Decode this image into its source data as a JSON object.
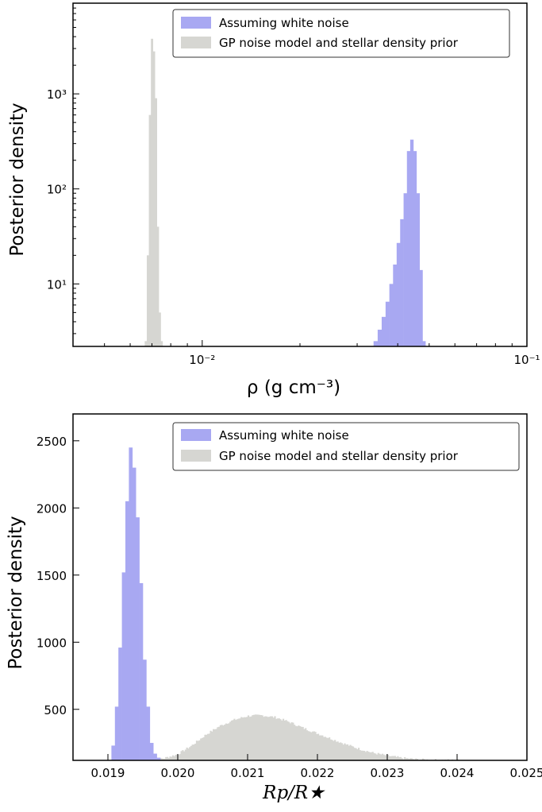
{
  "colors": {
    "white_noise": "#a8a8f2",
    "gp": "#d6d6d2"
  },
  "chart_data": [
    {
      "type": "histogram",
      "xscale": "log",
      "yscale": "log",
      "xlim": [
        0.004,
        0.1
      ],
      "ylim": [
        2.2,
        9000
      ],
      "xlabel": "ρ (g cm⁻³)",
      "ylabel": "Posterior density",
      "xticks": [
        {
          "value": 0.01,
          "label": "10⁻²"
        },
        {
          "value": 0.1,
          "label": "10⁻¹"
        }
      ],
      "yticks": [
        {
          "value": 10,
          "label": "10¹"
        },
        {
          "value": 100,
          "label": "10²"
        },
        {
          "value": 1000,
          "label": "10³"
        }
      ],
      "legend": {
        "position": "top-right"
      },
      "series": [
        {
          "name": "Assuming white noise",
          "color": "white_noise",
          "bin_edges": [
            0.0337,
            0.0347,
            0.0357,
            0.0367,
            0.0377,
            0.0387,
            0.0397,
            0.0407,
            0.0417,
            0.0427,
            0.0437,
            0.0447,
            0.0457,
            0.0467,
            0.0477,
            0.0487
          ],
          "values": [
            2.5,
            3.3,
            4.5,
            6.5,
            10,
            16,
            27,
            48,
            90,
            250,
            330,
            250,
            90,
            14,
            2.5
          ]
        },
        {
          "name": "GP noise model and stellar density prior",
          "color": "gp",
          "bin_edges": [
            0.00665,
            0.00675,
            0.00685,
            0.00695,
            0.00705,
            0.00715,
            0.00725,
            0.00735,
            0.00745,
            0.00755
          ],
          "values": [
            2.5,
            20,
            600,
            3800,
            2800,
            900,
            40,
            5,
            2.5
          ]
        }
      ]
    },
    {
      "type": "histogram",
      "xscale": "linear",
      "yscale": "linear",
      "xlim": [
        0.0185,
        0.025
      ],
      "ylim": [
        120,
        2700
      ],
      "xlabel": "Rp/R★",
      "ylabel": "Posterior density",
      "xticks": [
        {
          "value": 0.019,
          "label": "0.019"
        },
        {
          "value": 0.02,
          "label": "0.020"
        },
        {
          "value": 0.021,
          "label": "0.021"
        },
        {
          "value": 0.022,
          "label": "0.022"
        },
        {
          "value": 0.023,
          "label": "0.023"
        },
        {
          "value": 0.024,
          "label": "0.024"
        },
        {
          "value": 0.025,
          "label": "0.025"
        }
      ],
      "yticks": [
        {
          "value": 500,
          "label": "500"
        },
        {
          "value": 1000,
          "label": "1000"
        },
        {
          "value": 1500,
          "label": "1500"
        },
        {
          "value": 2000,
          "label": "2000"
        },
        {
          "value": 2500,
          "label": "2500"
        }
      ],
      "legend": {
        "position": "top-right"
      },
      "series": [
        {
          "name": "Assuming white noise",
          "color": "white_noise",
          "bin_edges": [
            0.01905,
            0.0191,
            0.01915,
            0.0192,
            0.01925,
            0.0193,
            0.01935,
            0.0194,
            0.01945,
            0.0195,
            0.01955,
            0.0196,
            0.01965,
            0.0197,
            0.01975
          ],
          "values": [
            230,
            520,
            960,
            1520,
            2050,
            2450,
            2300,
            1930,
            1440,
            870,
            520,
            250,
            170,
            140
          ]
        },
        {
          "name": "GP noise model and stellar density prior",
          "color": "gp",
          "profile": {
            "x": [
              0.0196,
              0.0198,
              0.02,
              0.0202,
              0.0204,
              0.0206,
              0.0208,
              0.021,
              0.0212,
              0.0214,
              0.0216,
              0.0218,
              0.022,
              0.0222,
              0.0224,
              0.0226,
              0.0228,
              0.023,
              0.0232,
              0.0234,
              0.0236,
              0.0238,
              0.024
            ],
            "y": [
              120,
              135,
              165,
              230,
              310,
              375,
              420,
              450,
              455,
              440,
              405,
              360,
              320,
              280,
              240,
              205,
              175,
              155,
              138,
              128,
              123,
              121,
              120
            ]
          }
        }
      ]
    }
  ]
}
